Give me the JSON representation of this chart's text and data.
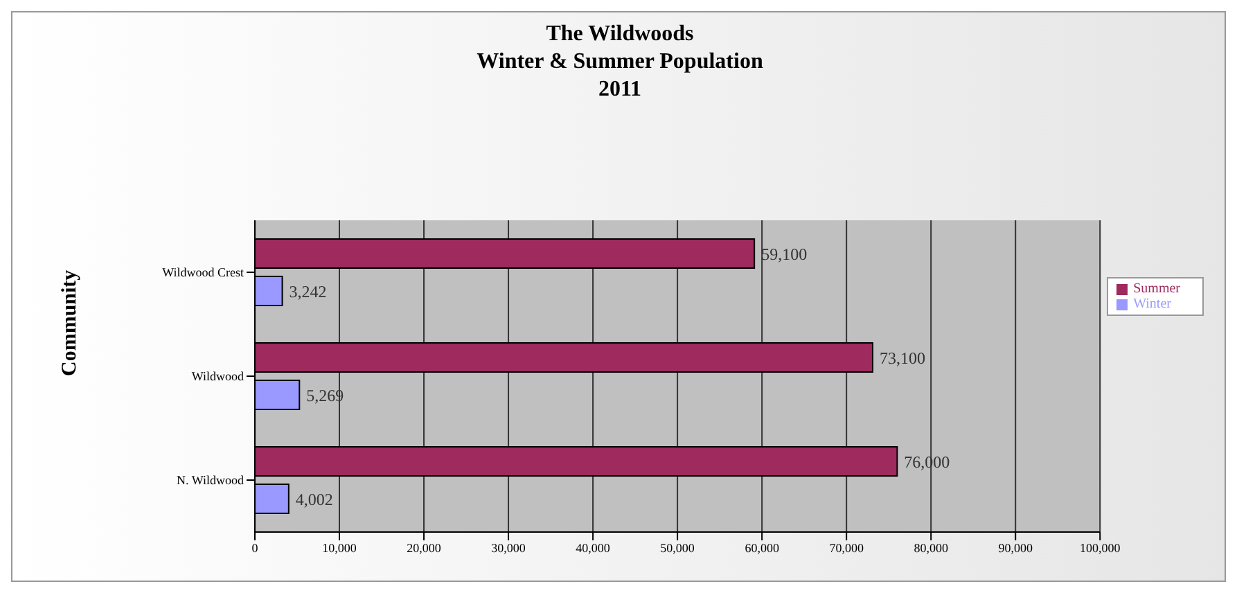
{
  "chart_data": {
    "type": "bar",
    "orientation": "horizontal",
    "title": "The Wildwoods\nWinter & Summer Population\n2011",
    "ylabel": "Community",
    "categories": [
      "Wildwood Crest",
      "Wildwood",
      "N. Wildwood"
    ],
    "series": [
      {
        "name": "Summer",
        "color": "#9e2a5e",
        "values": [
          59100,
          73100,
          76000
        ],
        "value_labels": [
          "59,100",
          "73,100",
          "76,000"
        ]
      },
      {
        "name": "Winter",
        "color": "#9999ff",
        "values": [
          3242,
          5269,
          4002
        ],
        "value_labels": [
          "3,242",
          "5,269",
          "4,002"
        ]
      }
    ],
    "xlim": [
      0,
      100000
    ],
    "xticks": [
      0,
      {
        "value": 10000,
        "label": "10,000"
      },
      {
        "value": 20000,
        "label": "20,000"
      },
      {
        "value": 30000,
        "label": "30,000"
      },
      {
        "value": 40000,
        "label": "40,000"
      },
      {
        "value": 50000,
        "label": "50,000"
      },
      {
        "value": 60000,
        "label": "60,000"
      },
      {
        "value": 70000,
        "label": "70,000"
      },
      {
        "value": 80000,
        "label": "80,000"
      },
      {
        "value": 90000,
        "label": "90,000"
      },
      {
        "value": 100000,
        "label": "100,000"
      }
    ],
    "grid": "x",
    "legend": "right"
  }
}
